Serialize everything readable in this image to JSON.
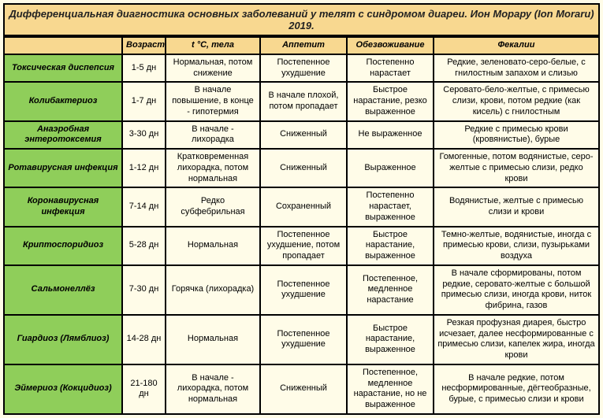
{
  "title": "Дифференциальная диагностика основных заболеваний у телят с синдромом диареи. Ион Морару (Ion Moraru) 2019.",
  "headers": {
    "age": "Возраст",
    "temp": "t °C, тела",
    "appetite": "Аппетит",
    "dehydration": "Обезвоживание",
    "feces": "Фекалии"
  },
  "rows": [
    {
      "disease": "Токсическая диспепсия",
      "age": "1-5 дн",
      "temp": "Нормальная, потом снижение",
      "appetite": "Постепенное ухудшение",
      "dehydration": "Постепенно нарастает",
      "feces": "Редкие, зеленовато-серо-белые, с гнилостным запахом и слизью"
    },
    {
      "disease": "Колибактериоз",
      "age": "1-7 дн",
      "temp": "В начале повышение, в конце - гипотермия",
      "appetite": "В начале плохой, потом пропадает",
      "dehydration": "Быстрое нарастание, резко выраженное",
      "feces": "Серовато-бело-желтые, с примесью слизи, крови, потом редкие (как кисель) с гнилостным"
    },
    {
      "disease": "Анаэробная энтеротоксемия",
      "age": "3-30 дн",
      "temp": "В начале - лихорадка",
      "appetite": "Сниженный",
      "dehydration": "Не выраженное",
      "feces": "Редкие с примесью крови (кровянистые), бурые"
    },
    {
      "disease": "Ротавирусная инфекция",
      "age": "1-12 дн",
      "temp": "Кратковременная лихорадка, потом нормальная",
      "appetite": "Сниженный",
      "dehydration": "Выраженное",
      "feces": "Гомогенные, потом водянистые, серо-желтые с примесью слизи, редко крови"
    },
    {
      "disease": "Коронавирусная инфекция",
      "age": "7-14 дн",
      "temp": "Редко субфебрильная",
      "appetite": "Сохраненный",
      "dehydration": "Постепенно нарастает, выраженное",
      "feces": "Водянистые, желтые с примесью слизи и крови"
    },
    {
      "disease": "Криптоспоридиоз",
      "age": "5-28 дн",
      "temp": "Нормальная",
      "appetite": "Постепенное ухудшение, потом пропадает",
      "dehydration": "Быстрое нарастание, выраженное",
      "feces": "Темно-желтые, водянистые, иногда с примесью крови, слизи, пузырьками воздуха"
    },
    {
      "disease": "Сальмонеллёз",
      "age": "7-30 дн",
      "temp": "Горячка (лихорадка)",
      "appetite": "Постепенное ухудшение",
      "dehydration": "Постепенное, медленное нарастание",
      "feces": "В начале сформированы, потом редкие, серовато-желтые с большой примесью слизи, иногда крови, ниток фибрина, газов"
    },
    {
      "disease": "Гиардиоз (Лямблиоз)",
      "age": "14-28 дн",
      "temp": "Нормальная",
      "appetite": "Постепенное ухудшение",
      "dehydration": "Быстрое нарастание, выраженное",
      "feces": "Резкая профузная диарея, быстро исчезает, далее несформированные с примесью слизи, капелек жира, иногда крови"
    },
    {
      "disease": "Эймериоз (Кокцидиоз)",
      "age": "21-180 дн",
      "temp": "В начале - лихорадка, потом нормальная",
      "appetite": "Сниженный",
      "dehydration": "Постепенное, медленное нарастание, но не выраженное",
      "feces": "В начале редкие, потом несформированные, дёгтеобразные, бурые, с примесью слизи и крови"
    }
  ]
}
